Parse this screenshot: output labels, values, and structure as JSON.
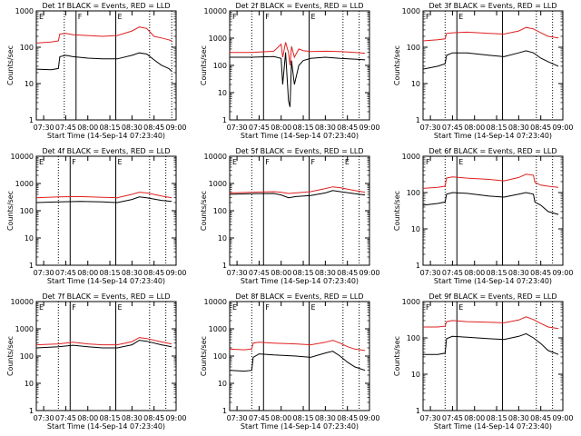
{
  "chart_data": [
    {
      "type": "line",
      "title": "Det 1f BLACK = Events, RED = LLD",
      "xlabel": "Start Time (14-Sep-14 07:23:40)",
      "ylabel": "Counts/sec",
      "yscale": "log",
      "ylim": [
        1,
        1000
      ],
      "xlim": [
        "07:25",
        "09:00"
      ],
      "xticks": [
        "07:30",
        "07:45",
        "08:00",
        "08:15",
        "08:30",
        "08:45",
        "09:00"
      ],
      "yticks": [
        "1",
        "10",
        "100",
        "1000"
      ],
      "flags": [
        "E",
        "F",
        "E"
      ],
      "vlines_solid": [
        "07:52",
        "08:19"
      ],
      "vlines_dotted": [
        "07:44",
        "08:42",
        "08:57"
      ],
      "series": [
        {
          "color": "#000000",
          "x": [
            "07:25",
            "07:35",
            "07:40",
            "07:41",
            "07:45",
            "07:50",
            "08:00",
            "08:10",
            "08:20",
            "08:30",
            "08:35",
            "08:40",
            "08:45",
            "08:50",
            "08:55",
            "08:57"
          ],
          "values": [
            25,
            24,
            26,
            55,
            60,
            55,
            50,
            48,
            48,
            60,
            70,
            65,
            45,
            32,
            26,
            22
          ]
        },
        {
          "color": "#e02020",
          "x": [
            "07:25",
            "07:35",
            "07:40",
            "07:41",
            "07:45",
            "07:50",
            "08:00",
            "08:10",
            "08:20",
            "08:30",
            "08:35",
            "08:40",
            "08:45",
            "08:50",
            "08:55",
            "08:57"
          ],
          "values": [
            130,
            140,
            150,
            230,
            240,
            220,
            210,
            200,
            210,
            280,
            360,
            330,
            200,
            180,
            160,
            150
          ]
        }
      ]
    },
    {
      "type": "line",
      "title": "Det 2f BLACK = Events, RED = LLD",
      "xlabel": "Start Time (14-Sep-14 07:23:40)",
      "ylabel": "Counts/sec",
      "yscale": "log",
      "ylim": [
        1,
        10000
      ],
      "xlim": [
        "07:25",
        "09:00"
      ],
      "xticks": [
        "07:30",
        "07:45",
        "08:00",
        "08:15",
        "08:30",
        "08:45",
        "09:00"
      ],
      "yticks": [
        "1",
        "10",
        "100",
        "1000",
        "10000"
      ],
      "flags": [
        "F",
        "F",
        "E"
      ],
      "vlines_solid": [
        "07:48",
        "08:19"
      ],
      "vlines_dotted": [
        "07:40",
        "08:42",
        "08:53"
      ],
      "series": [
        {
          "color": "#000000",
          "x": [
            "07:25",
            "07:40",
            "07:55",
            "08:00",
            "08:01",
            "08:03",
            "08:05",
            "08:06",
            "08:07",
            "08:09",
            "08:12",
            "08:15",
            "08:20",
            "08:30",
            "08:40",
            "08:50",
            "08:57"
          ],
          "values": [
            200,
            200,
            210,
            180,
            20,
            300,
            5,
            3,
            150,
            20,
            100,
            150,
            180,
            200,
            180,
            170,
            160
          ]
        },
        {
          "color": "#e02020",
          "x": [
            "07:25",
            "07:40",
            "07:55",
            "08:00",
            "08:01",
            "08:03",
            "08:05",
            "08:06",
            "08:07",
            "08:09",
            "08:12",
            "08:15",
            "08:20",
            "08:30",
            "08:40",
            "08:50",
            "08:57"
          ],
          "values": [
            300,
            300,
            330,
            600,
            200,
            700,
            300,
            100,
            500,
            200,
            400,
            350,
            320,
            330,
            320,
            300,
            280
          ]
        }
      ]
    },
    {
      "type": "line",
      "title": "Det 3f BLACK = Events, RED = LLD",
      "xlabel": "Start Time (14-Sep-14 07:23:40)",
      "ylabel": "Counts/sec",
      "yscale": "log",
      "ylim": [
        1,
        1000
      ],
      "xlim": [
        "07:25",
        "09:00"
      ],
      "xticks": [
        "07:30",
        "07:45",
        "08:00",
        "08:15",
        "08:30",
        "08:45",
        "09:00"
      ],
      "yticks": [
        "1",
        "10",
        "100",
        "1000"
      ],
      "flags": [
        "F",
        "E"
      ],
      "vlines_solid": [
        "07:48",
        "08:19"
      ],
      "vlines_dotted": [
        "07:40",
        "08:42",
        "08:53"
      ],
      "series": [
        {
          "color": "#000000",
          "x": [
            "07:25",
            "07:35",
            "07:40",
            "07:41",
            "07:45",
            "07:55",
            "08:10",
            "08:20",
            "08:30",
            "08:35",
            "08:40",
            "08:45",
            "08:50",
            "08:57"
          ],
          "values": [
            25,
            30,
            35,
            60,
            70,
            70,
            60,
            55,
            70,
            80,
            70,
            50,
            40,
            30
          ]
        },
        {
          "color": "#e02020",
          "x": [
            "07:25",
            "07:35",
            "07:40",
            "07:41",
            "07:45",
            "07:55",
            "08:10",
            "08:20",
            "08:30",
            "08:35",
            "08:40",
            "08:45",
            "08:50",
            "08:57"
          ],
          "values": [
            150,
            160,
            170,
            240,
            250,
            260,
            240,
            230,
            280,
            350,
            320,
            250,
            200,
            180
          ]
        }
      ]
    },
    {
      "type": "line",
      "title": "Det 4f BLACK = Events, RED = LLD",
      "xlabel": "Start Time (14-Sep-14 07:23:40)",
      "ylabel": "Counts/sec",
      "yscale": "log",
      "ylim": [
        1,
        10000
      ],
      "xlim": [
        "07:25",
        "09:00"
      ],
      "xticks": [
        "07:30",
        "07:45",
        "08:00",
        "08:15",
        "08:30",
        "08:45",
        "09:00"
      ],
      "yticks": [
        "1",
        "10",
        "100",
        "1000",
        "10000"
      ],
      "flags": [
        "E",
        "F",
        "E"
      ],
      "vlines_solid": [
        "07:48",
        "08:19"
      ],
      "vlines_dotted": [
        "07:40",
        "08:42",
        "08:53"
      ],
      "series": [
        {
          "color": "#000000",
          "x": [
            "07:25",
            "07:40",
            "07:55",
            "08:10",
            "08:20",
            "08:30",
            "08:35",
            "08:40",
            "08:50",
            "08:57"
          ],
          "values": [
            200,
            210,
            220,
            210,
            200,
            260,
            320,
            300,
            240,
            220
          ]
        },
        {
          "color": "#e02020",
          "x": [
            "07:25",
            "07:40",
            "07:55",
            "08:10",
            "08:20",
            "08:30",
            "08:35",
            "08:40",
            "08:50",
            "08:57"
          ],
          "values": [
            300,
            320,
            330,
            310,
            300,
            400,
            480,
            450,
            350,
            300
          ]
        }
      ]
    },
    {
      "type": "line",
      "title": "Det 5f BLACK = Events, RED = LLD",
      "xlabel": "Start Time (14-Sep-14 07:23:40)",
      "ylabel": "Counts/sec",
      "yscale": "log",
      "ylim": [
        1,
        10000
      ],
      "xlim": [
        "07:25",
        "09:00"
      ],
      "xticks": [
        "07:30",
        "07:45",
        "08:00",
        "08:15",
        "08:30",
        "08:45",
        "09:00"
      ],
      "yticks": [
        "1",
        "10",
        "100",
        "1000",
        "10000"
      ],
      "flags": [
        "E",
        "F",
        "F",
        "E"
      ],
      "vlines_solid": [
        "07:48",
        "08:19"
      ],
      "vlines_dotted": [
        "07:40",
        "08:42",
        "08:53"
      ],
      "series": [
        {
          "color": "#000000",
          "x": [
            "07:25",
            "07:40",
            "07:55",
            "08:00",
            "08:05",
            "08:10",
            "08:20",
            "08:30",
            "08:35",
            "08:40",
            "08:50",
            "08:57"
          ],
          "values": [
            400,
            420,
            430,
            380,
            300,
            330,
            360,
            450,
            550,
            500,
            420,
            380
          ]
        },
        {
          "color": "#e02020",
          "x": [
            "07:25",
            "07:40",
            "07:55",
            "08:00",
            "08:05",
            "08:10",
            "08:20",
            "08:30",
            "08:35",
            "08:40",
            "08:50",
            "08:57"
          ],
          "values": [
            450,
            480,
            500,
            480,
            430,
            450,
            500,
            650,
            750,
            700,
            550,
            480
          ]
        }
      ]
    },
    {
      "type": "line",
      "title": "Det 6f BLACK = Events, RED = LLD",
      "xlabel": "Start Time (14-Sep-14 07:23:40)",
      "ylabel": "Counts/sec",
      "yscale": "log",
      "ylim": [
        1,
        1000
      ],
      "xlim": [
        "07:25",
        "09:00"
      ],
      "xticks": [
        "07:30",
        "07:45",
        "08:00",
        "08:15",
        "08:30",
        "08:45",
        "09:00"
      ],
      "yticks": [
        "1",
        "10",
        "100",
        "1000"
      ],
      "flags": [
        "F",
        "E"
      ],
      "vlines_solid": [
        "07:48",
        "08:19"
      ],
      "vlines_dotted": [
        "07:40",
        "08:42",
        "08:53"
      ],
      "series": [
        {
          "color": "#000000",
          "x": [
            "07:25",
            "07:35",
            "07:40",
            "07:41",
            "07:45",
            "07:55",
            "08:10",
            "08:20",
            "08:30",
            "08:35",
            "08:40",
            "08:41",
            "08:45",
            "08:50",
            "08:57"
          ],
          "values": [
            45,
            50,
            55,
            90,
            100,
            95,
            80,
            75,
            90,
            100,
            90,
            55,
            45,
            30,
            25
          ]
        },
        {
          "color": "#e02020",
          "x": [
            "07:25",
            "07:35",
            "07:40",
            "07:41",
            "07:45",
            "07:55",
            "08:10",
            "08:20",
            "08:30",
            "08:35",
            "08:40",
            "08:41",
            "08:45",
            "08:50",
            "08:57"
          ],
          "values": [
            130,
            140,
            150,
            250,
            270,
            250,
            230,
            210,
            260,
            320,
            300,
            190,
            160,
            150,
            140
          ]
        }
      ]
    },
    {
      "type": "line",
      "title": "Det 7f BLACK = Events, RED = LLD",
      "xlabel": "Start Time (14-Sep-14 07:23:40)",
      "ylabel": "Counts/sec",
      "yscale": "log",
      "ylim": [
        1,
        10000
      ],
      "xlim": [
        "07:25",
        "09:00"
      ],
      "xticks": [
        "07:30",
        "07:45",
        "08:00",
        "08:15",
        "08:30",
        "08:45",
        "09:00"
      ],
      "yticks": [
        "1",
        "10",
        "100",
        "1000",
        "10000"
      ],
      "flags": [
        "E",
        "F",
        "E"
      ],
      "vlines_solid": [
        "07:48",
        "08:19"
      ],
      "vlines_dotted": [
        "07:40",
        "08:42",
        "08:53"
      ],
      "series": [
        {
          "color": "#000000",
          "x": [
            "07:25",
            "07:40",
            "07:50",
            "08:00",
            "08:10",
            "08:20",
            "08:30",
            "08:35",
            "08:40",
            "08:50",
            "08:57"
          ],
          "values": [
            200,
            220,
            250,
            220,
            200,
            200,
            260,
            380,
            350,
            260,
            220
          ]
        },
        {
          "color": "#e02020",
          "x": [
            "07:25",
            "07:40",
            "07:50",
            "08:00",
            "08:10",
            "08:20",
            "08:30",
            "08:35",
            "08:40",
            "08:50",
            "08:57"
          ],
          "values": [
            260,
            280,
            320,
            280,
            260,
            260,
            340,
            480,
            440,
            330,
            280
          ]
        }
      ]
    },
    {
      "type": "line",
      "title": "Det 8f BLACK = Events, RED = LLD",
      "xlabel": "Start Time (14-Sep-14 07:23:40)",
      "ylabel": "Counts/sec",
      "yscale": "log",
      "ylim": [
        1,
        10000
      ],
      "xlim": [
        "07:25",
        "09:00"
      ],
      "xticks": [
        "07:30",
        "07:45",
        "08:00",
        "08:15",
        "08:30",
        "08:45",
        "09:00"
      ],
      "yticks": [
        "1",
        "10",
        "100",
        "1000",
        "10000"
      ],
      "flags": [
        "E",
        "F",
        "E"
      ],
      "vlines_solid": [
        "07:48",
        "08:19"
      ],
      "vlines_dotted": [
        "07:40",
        "08:42",
        "08:53"
      ],
      "series": [
        {
          "color": "#000000",
          "x": [
            "07:25",
            "07:35",
            "07:40",
            "07:41",
            "07:45",
            "07:55",
            "08:10",
            "08:20",
            "08:30",
            "08:35",
            "08:40",
            "08:45",
            "08:50",
            "08:57"
          ],
          "values": [
            30,
            28,
            30,
            90,
            120,
            110,
            100,
            90,
            130,
            150,
            100,
            60,
            40,
            30
          ]
        },
        {
          "color": "#e02020",
          "x": [
            "07:25",
            "07:35",
            "07:40",
            "07:41",
            "07:45",
            "07:55",
            "08:10",
            "08:20",
            "08:30",
            "08:35",
            "08:40",
            "08:45",
            "08:50",
            "08:57"
          ],
          "values": [
            180,
            170,
            180,
            300,
            320,
            300,
            280,
            260,
            320,
            380,
            300,
            220,
            180,
            160
          ]
        }
      ]
    },
    {
      "type": "line",
      "title": "Det 9f BLACK = Events, RED = LLD",
      "xlabel": "Start Time (14-Sep-14 07:23:40)",
      "ylabel": "Counts/sec",
      "yscale": "log",
      "ylim": [
        1,
        1000
      ],
      "xlim": [
        "07:25",
        "09:00"
      ],
      "xticks": [
        "07:30",
        "07:45",
        "08:00",
        "08:15",
        "08:30",
        "08:45",
        "09:00"
      ],
      "yticks": [
        "1",
        "10",
        "100",
        "1000"
      ],
      "flags": [
        "F",
        "E"
      ],
      "vlines_solid": [
        "07:48",
        "08:19"
      ],
      "vlines_dotted": [
        "07:40",
        "08:42",
        "08:53"
      ],
      "series": [
        {
          "color": "#000000",
          "x": [
            "07:25",
            "07:35",
            "07:40",
            "07:41",
            "07:45",
            "07:55",
            "08:10",
            "08:20",
            "08:30",
            "08:35",
            "08:40",
            "08:45",
            "08:50",
            "08:57"
          ],
          "values": [
            35,
            35,
            38,
            95,
            110,
            105,
            95,
            90,
            110,
            130,
            100,
            70,
            45,
            35
          ]
        },
        {
          "color": "#e02020",
          "x": [
            "07:25",
            "07:35",
            "07:40",
            "07:41",
            "07:45",
            "07:55",
            "08:10",
            "08:20",
            "08:30",
            "08:35",
            "08:40",
            "08:45",
            "08:50",
            "08:57"
          ],
          "values": [
            200,
            200,
            210,
            280,
            300,
            280,
            270,
            260,
            310,
            380,
            320,
            250,
            200,
            180
          ]
        }
      ]
    }
  ]
}
